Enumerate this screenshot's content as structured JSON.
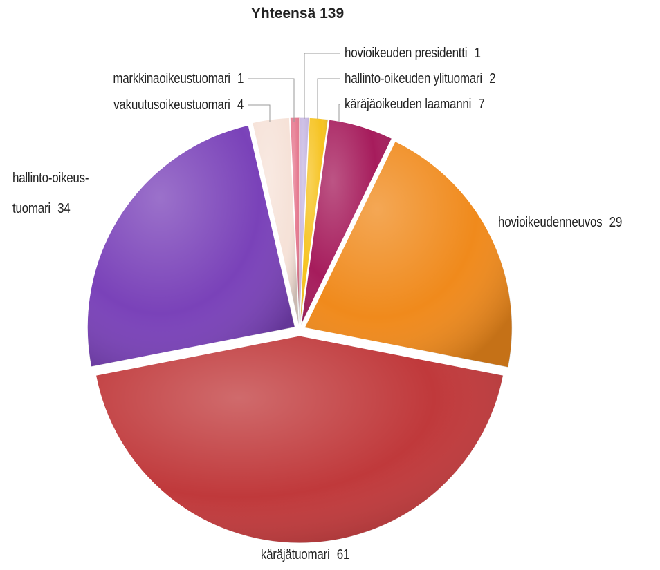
{
  "chart_data": {
    "type": "pie",
    "title": "Yhteensä 139",
    "categories": [
      "hovioikeuden presidentti",
      "hallinto-oikeuden ylituomari",
      "käräjäoikeuden laamanni",
      "hovioikeudenneuvos",
      "käräjätuomari",
      "hallinto-oikeus-\ntuomari",
      "vakuutusoikeustuomari",
      "markkinaoikeustuomari"
    ],
    "values": [
      1,
      2,
      7,
      29,
      61,
      34,
      4,
      1
    ],
    "colors": [
      "#c8b9e2",
      "#f6c320",
      "#a61c5c",
      "#f08a1c",
      "#c0393b",
      "#7a42b9",
      "#f6e2d8",
      "#e67a90"
    ]
  }
}
